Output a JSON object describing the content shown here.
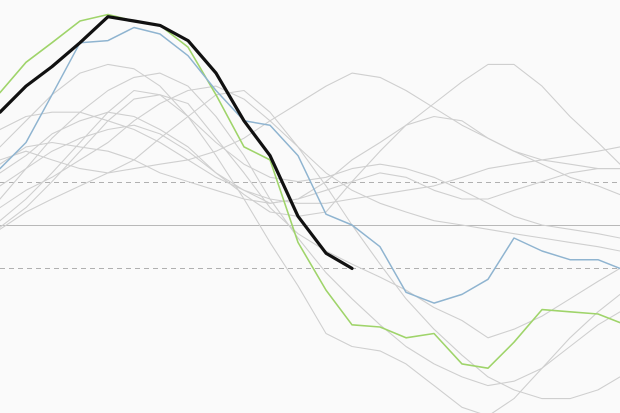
{
  "chart_data": {
    "type": "line",
    "title": "",
    "xlabel": "",
    "ylabel": "",
    "xlim": [
      0,
      620
    ],
    "ylim": [
      -100,
      100
    ],
    "grid": false,
    "colors": {
      "background": "#fafafa",
      "baseline": "#b8b8b8",
      "dashed": "#b0b0b0",
      "gray": "#cfcfcf",
      "green": "#9fd46a",
      "blue": "#8fb4d0",
      "black": "#111111"
    },
    "reference_lines": [
      {
        "y": 0,
        "style": "solid"
      },
      {
        "y": 20,
        "style": "dashed"
      },
      {
        "y": -20,
        "style": "dashed"
      }
    ],
    "series": [
      {
        "style": "gray",
        "x": [
          0,
          26,
          52,
          80,
          108,
          134,
          160,
          188,
          216,
          244,
          270,
          298,
          326,
          352,
          380,
          406,
          434,
          462,
          488,
          514,
          542,
          570,
          598,
          620
        ],
        "y": [
          -1,
          8,
          20,
          34,
          48,
          58,
          60,
          56,
          40,
          24,
          8,
          -4,
          -12,
          -18,
          -24,
          -30,
          -38,
          -44,
          -52,
          -48,
          -42,
          -34,
          -26,
          -20
        ]
      },
      {
        "style": "gray",
        "x": [
          0,
          26,
          52,
          80,
          108,
          134,
          160,
          188,
          216,
          244,
          270,
          298,
          326,
          352,
          380,
          406,
          434,
          462,
          488,
          514,
          542,
          570,
          598,
          620
        ],
        "y": [
          12,
          26,
          40,
          52,
          62,
          68,
          70,
          64,
          50,
          32,
          12,
          -6,
          -22,
          -34,
          -46,
          -56,
          -64,
          -70,
          -74,
          -72,
          -66,
          -56,
          -46,
          -40
        ]
      },
      {
        "style": "gray",
        "x": [
          0,
          26,
          52,
          80,
          108,
          134,
          160,
          188,
          216,
          244,
          270,
          298,
          326,
          352,
          380,
          406,
          434,
          462,
          488,
          514,
          542,
          570,
          598,
          620
        ],
        "y": [
          36,
          48,
          60,
          70,
          74,
          72,
          64,
          50,
          32,
          12,
          -8,
          -28,
          -50,
          -56,
          -58,
          -64,
          -74,
          -84,
          -88,
          -80,
          -66,
          -52,
          -40,
          -32
        ]
      },
      {
        "style": "gray",
        "x": [
          0,
          26,
          52,
          80,
          108,
          134,
          160,
          188,
          216,
          244,
          270,
          298,
          326,
          352,
          380,
          406,
          434,
          462,
          488,
          514,
          542,
          570,
          598,
          620
        ],
        "y": [
          24,
          32,
          42,
          48,
          52,
          50,
          44,
          36,
          24,
          14,
          6,
          4,
          6,
          20,
          34,
          46,
          56,
          66,
          74,
          74,
          64,
          50,
          38,
          28
        ]
      },
      {
        "style": "gray",
        "x": [
          0,
          26,
          52,
          80,
          108,
          134,
          160,
          188,
          216,
          244,
          270,
          298,
          326,
          352,
          380,
          406,
          434,
          462,
          488,
          514,
          542,
          570,
          598,
          620
        ],
        "y": [
          18,
          26,
          34,
          40,
          44,
          46,
          42,
          34,
          24,
          16,
          10,
          12,
          20,
          30,
          38,
          46,
          50,
          48,
          40,
          34,
          30,
          28,
          26,
          26
        ]
      },
      {
        "style": "gray",
        "x": [
          0,
          26,
          52,
          80,
          108,
          134,
          160,
          188,
          216,
          244,
          270,
          298,
          326,
          352,
          380,
          406,
          434,
          462,
          488,
          514,
          542,
          570,
          598,
          620
        ],
        "y": [
          8,
          16,
          22,
          30,
          38,
          48,
          56,
          62,
          64,
          58,
          48,
          36,
          24,
          16,
          10,
          6,
          2,
          0,
          -2,
          -4,
          -6,
          -8,
          -10,
          -12
        ]
      },
      {
        "style": "gray",
        "x": [
          0,
          26,
          52,
          80,
          108,
          134,
          160,
          188,
          216,
          244,
          270,
          298,
          326,
          352,
          380,
          406,
          434,
          462,
          488,
          514,
          542,
          570,
          598,
          620
        ],
        "y": [
          28,
          36,
          38,
          36,
          34,
          30,
          24,
          20,
          16,
          12,
          10,
          12,
          16,
          20,
          24,
          22,
          16,
          12,
          12,
          16,
          20,
          24,
          26,
          26
        ]
      },
      {
        "style": "gray",
        "x": [
          0,
          26,
          52,
          80,
          108,
          134,
          160,
          188,
          216,
          244,
          270,
          298,
          326,
          352,
          380,
          406,
          434,
          462,
          488,
          514,
          542,
          570,
          598,
          620
        ],
        "y": [
          44,
          50,
          52,
          52,
          48,
          44,
          38,
          30,
          22,
          16,
          12,
          10,
          10,
          12,
          14,
          16,
          18,
          22,
          26,
          28,
          30,
          32,
          34,
          36
        ]
      },
      {
        "style": "gray",
        "x": [
          0,
          26,
          52,
          80,
          108,
          134,
          160,
          188,
          216,
          244,
          270,
          298,
          326,
          352,
          380,
          406,
          434,
          462,
          488,
          514,
          542,
          570,
          598,
          620
        ],
        "y": [
          30,
          34,
          30,
          26,
          24,
          26,
          28,
          30,
          34,
          40,
          48,
          56,
          64,
          70,
          68,
          62,
          54,
          46,
          40,
          34,
          28,
          22,
          18,
          14
        ]
      },
      {
        "style": "gray",
        "x": [
          0,
          26,
          52,
          80,
          108,
          134,
          160,
          188,
          216,
          244,
          270,
          298,
          326,
          352,
          380,
          406,
          434,
          462,
          488,
          514,
          542,
          570,
          598,
          620
        ],
        "y": [
          2,
          12,
          24,
          38,
          52,
          62,
          60,
          50,
          38,
          28,
          22,
          20,
          22,
          26,
          28,
          26,
          22,
          16,
          10,
          4,
          0,
          -2,
          -4,
          -6
        ]
      },
      {
        "style": "gray",
        "x": [
          0,
          26,
          52,
          80,
          108,
          134,
          160,
          188,
          216,
          244,
          270,
          298,
          326,
          352,
          380,
          406,
          434,
          462,
          488,
          514,
          542,
          570,
          598,
          620
        ],
        "y": [
          -2,
          6,
          12,
          18,
          24,
          30,
          40,
          50,
          60,
          62,
          52,
          36,
          18,
          0,
          -18,
          -34,
          -48,
          -60,
          -70,
          -76,
          -80,
          -80,
          -76,
          -70
        ]
      },
      {
        "style": "green",
        "x": [
          0,
          26,
          52,
          80,
          108,
          134,
          160,
          188,
          216,
          244,
          270,
          298,
          326,
          352,
          380,
          406,
          434,
          462,
          488,
          514,
          542,
          570,
          598,
          620
        ],
        "y": [
          61,
          75,
          84,
          94,
          97,
          94,
          92,
          82,
          60,
          36,
          30,
          -8,
          -30,
          -46,
          -47,
          -52,
          -50,
          -64,
          -66,
          -54,
          -39,
          -40,
          -41,
          -45
        ]
      },
      {
        "style": "blue",
        "x": [
          0,
          26,
          52,
          80,
          108,
          134,
          160,
          188,
          216,
          244,
          270,
          298,
          326,
          352,
          380,
          406,
          434,
          462,
          488,
          514,
          542,
          570,
          598,
          620
        ],
        "y": [
          26,
          38,
          60,
          84,
          85,
          91,
          88,
          78,
          62,
          48,
          46,
          32,
          5,
          0,
          -10,
          -31,
          -36,
          -32,
          -25,
          -6,
          -12,
          -16,
          -16,
          -20
        ]
      },
      {
        "style": "black",
        "x": [
          0,
          26,
          52,
          80,
          108,
          134,
          160,
          188,
          216,
          244,
          270,
          298,
          326,
          352
        ],
        "y": [
          52,
          64,
          73,
          84,
          96,
          94,
          92,
          85,
          70,
          48,
          32,
          4,
          -13,
          -20
        ]
      }
    ]
  }
}
